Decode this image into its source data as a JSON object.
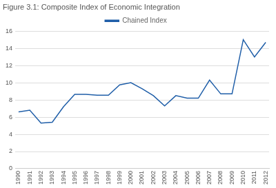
{
  "chart_data": {
    "type": "line",
    "title": "Figure 3.1: Composite Index of Economic Integration",
    "x": [
      1990,
      1991,
      1992,
      1993,
      1994,
      1995,
      1996,
      1997,
      1998,
      1999,
      2000,
      2001,
      2002,
      2003,
      2004,
      2005,
      2006,
      2007,
      2008,
      2009,
      2010,
      2011,
      2012
    ],
    "series": [
      {
        "name": "Chained Index",
        "color": "#1f5ea8",
        "values": [
          6.6,
          6.8,
          5.3,
          5.4,
          7.2,
          8.65,
          8.65,
          8.55,
          8.55,
          9.75,
          10.0,
          9.3,
          8.5,
          7.3,
          8.5,
          8.2,
          8.2,
          10.3,
          8.7,
          8.7,
          15.0,
          13.0,
          14.7
        ]
      }
    ],
    "xlim": [
      1989.7,
      2012.3
    ],
    "xticks": [
      1990,
      1991,
      1992,
      1993,
      1994,
      1995,
      1996,
      1997,
      1998,
      1999,
      2000,
      2001,
      2002,
      2003,
      2004,
      2005,
      2006,
      2007,
      2008,
      2009,
      2010,
      2011,
      2012
    ],
    "ylim": [
      0,
      16
    ],
    "yticks": [
      0,
      2,
      4,
      6,
      8,
      10,
      12,
      14,
      16
    ],
    "grid": true,
    "legend": "top"
  }
}
